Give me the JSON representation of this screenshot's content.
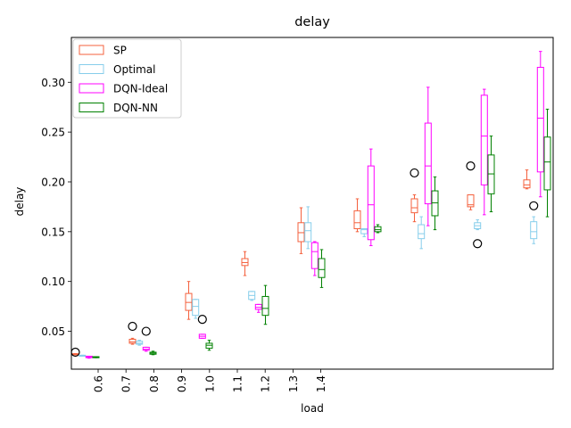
{
  "chart_data": {
    "type": "box",
    "title": "delay",
    "xlabel": "load",
    "ylabel": "delay",
    "ylim": [
      0.012,
      0.345
    ],
    "x_ticks": [
      "0.6",
      "0.7",
      "0.8",
      "0.9",
      "1.0",
      "1.1",
      "1.2",
      "1.3",
      "1.4"
    ],
    "y_ticks": [
      "0.05",
      "0.10",
      "0.15",
      "0.20",
      "0.25",
      "0.30"
    ],
    "legend_position": "top-left",
    "group_count": 9,
    "series": [
      {
        "name": "SP",
        "color": "#f4603d",
        "boxes": [
          {
            "whislo": 0.0265,
            "q1": 0.0265,
            "med": 0.027,
            "q3": 0.0275,
            "whishi": 0.0275,
            "fliers": [
              0.029
            ]
          },
          {
            "whislo": 0.037,
            "q1": 0.038,
            "med": 0.0395,
            "q3": 0.042,
            "whishi": 0.043,
            "fliers": [
              0.055
            ]
          },
          {
            "whislo": 0.062,
            "q1": 0.071,
            "med": 0.079,
            "q3": 0.088,
            "whishi": 0.1,
            "fliers": []
          },
          {
            "whislo": 0.106,
            "q1": 0.116,
            "med": 0.119,
            "q3": 0.123,
            "whishi": 0.13,
            "fliers": []
          },
          {
            "whislo": 0.128,
            "q1": 0.14,
            "med": 0.149,
            "q3": 0.159,
            "whishi": 0.174,
            "fliers": []
          },
          {
            "whislo": 0.15,
            "q1": 0.153,
            "med": 0.159,
            "q3": 0.171,
            "whishi": 0.183,
            "fliers": []
          },
          {
            "whislo": 0.16,
            "q1": 0.169,
            "med": 0.174,
            "q3": 0.183,
            "whishi": 0.187,
            "fliers": [
              0.209
            ]
          },
          {
            "whislo": 0.172,
            "q1": 0.175,
            "med": 0.177,
            "q3": 0.187,
            "whishi": 0.187,
            "fliers": [
              0.216
            ]
          },
          {
            "whislo": 0.193,
            "q1": 0.194,
            "med": 0.197,
            "q3": 0.202,
            "whishi": 0.212,
            "fliers": []
          }
        ]
      },
      {
        "name": "Optimal",
        "color": "#87ceeb",
        "boxes": [
          {
            "whislo": 0.025,
            "q1": 0.025,
            "med": 0.0255,
            "q3": 0.026,
            "whishi": 0.026,
            "fliers": []
          },
          {
            "whislo": 0.036,
            "q1": 0.037,
            "med": 0.038,
            "q3": 0.04,
            "whishi": 0.041,
            "fliers": []
          },
          {
            "whislo": 0.063,
            "q1": 0.066,
            "med": 0.075,
            "q3": 0.082,
            "whishi": 0.082,
            "fliers": []
          },
          {
            "whislo": 0.081,
            "q1": 0.082,
            "med": 0.086,
            "q3": 0.09,
            "whishi": 0.09,
            "fliers": []
          },
          {
            "whislo": 0.133,
            "q1": 0.14,
            "med": 0.151,
            "q3": 0.159,
            "whishi": 0.175,
            "fliers": []
          },
          {
            "whislo": 0.145,
            "q1": 0.148,
            "med": 0.152,
            "q3": 0.153,
            "whishi": 0.153,
            "fliers": []
          },
          {
            "whislo": 0.133,
            "q1": 0.143,
            "med": 0.148,
            "q3": 0.157,
            "whishi": 0.165,
            "fliers": []
          },
          {
            "whislo": 0.152,
            "q1": 0.153,
            "med": 0.156,
            "q3": 0.159,
            "whishi": 0.162,
            "fliers": [
              0.138
            ]
          },
          {
            "whislo": 0.138,
            "q1": 0.143,
            "med": 0.15,
            "q3": 0.16,
            "whishi": 0.165,
            "fliers": [
              0.176
            ]
          }
        ]
      },
      {
        "name": "DQN-Ideal",
        "color": "#ff00ff",
        "boxes": [
          {
            "whislo": 0.023,
            "q1": 0.0235,
            "med": 0.024,
            "q3": 0.025,
            "whishi": 0.025,
            "fliers": []
          },
          {
            "whislo": 0.03,
            "q1": 0.031,
            "med": 0.032,
            "q3": 0.034,
            "whishi": 0.034,
            "fliers": [
              0.05
            ]
          },
          {
            "whislo": 0.043,
            "q1": 0.043,
            "med": 0.045,
            "q3": 0.047,
            "whishi": 0.047,
            "fliers": [
              0.062
            ]
          },
          {
            "whislo": 0.069,
            "q1": 0.072,
            "med": 0.074,
            "q3": 0.077,
            "whishi": 0.077,
            "fliers": []
          },
          {
            "whislo": 0.106,
            "q1": 0.113,
            "med": 0.13,
            "q3": 0.139,
            "whishi": 0.14,
            "fliers": []
          },
          {
            "whislo": 0.136,
            "q1": 0.142,
            "med": 0.177,
            "q3": 0.216,
            "whishi": 0.233,
            "fliers": []
          },
          {
            "whislo": 0.156,
            "q1": 0.178,
            "med": 0.216,
            "q3": 0.259,
            "whishi": 0.295,
            "fliers": []
          },
          {
            "whislo": 0.167,
            "q1": 0.197,
            "med": 0.246,
            "q3": 0.287,
            "whishi": 0.293,
            "fliers": []
          },
          {
            "whislo": 0.185,
            "q1": 0.21,
            "med": 0.264,
            "q3": 0.315,
            "whishi": 0.331,
            "fliers": []
          }
        ]
      },
      {
        "name": "DQN-NN",
        "color": "#008000",
        "boxes": [
          {
            "whislo": 0.0235,
            "q1": 0.0235,
            "med": 0.024,
            "q3": 0.0245,
            "whishi": 0.0245,
            "fliers": []
          },
          {
            "whislo": 0.0265,
            "q1": 0.027,
            "med": 0.028,
            "q3": 0.029,
            "whishi": 0.03,
            "fliers": []
          },
          {
            "whislo": 0.031,
            "q1": 0.033,
            "med": 0.036,
            "q3": 0.038,
            "whishi": 0.041,
            "fliers": []
          },
          {
            "whislo": 0.057,
            "q1": 0.066,
            "med": 0.073,
            "q3": 0.085,
            "whishi": 0.096,
            "fliers": []
          },
          {
            "whislo": 0.094,
            "q1": 0.104,
            "med": 0.112,
            "q3": 0.123,
            "whishi": 0.132,
            "fliers": []
          },
          {
            "whislo": 0.149,
            "q1": 0.15,
            "med": 0.152,
            "q3": 0.155,
            "whishi": 0.157,
            "fliers": []
          },
          {
            "whislo": 0.152,
            "q1": 0.166,
            "med": 0.179,
            "q3": 0.191,
            "whishi": 0.205,
            "fliers": []
          },
          {
            "whislo": 0.17,
            "q1": 0.188,
            "med": 0.208,
            "q3": 0.227,
            "whishi": 0.246,
            "fliers": []
          },
          {
            "whislo": 0.165,
            "q1": 0.192,
            "med": 0.22,
            "q3": 0.245,
            "whishi": 0.273,
            "fliers": []
          }
        ]
      }
    ]
  }
}
